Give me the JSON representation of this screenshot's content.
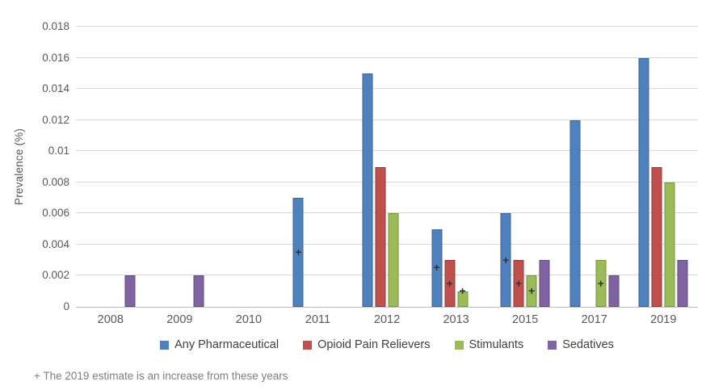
{
  "chart_data": {
    "type": "bar",
    "title": "",
    "xlabel": "",
    "ylabel": "Prevalence (%)",
    "ylim": [
      0,
      0.018
    ],
    "ytick_step": 0.002,
    "yticks": [
      "0",
      "0.002",
      "0.004",
      "0.006",
      "0.008",
      "0.01",
      "0.012",
      "0.014",
      "0.016",
      "0.018"
    ],
    "categories": [
      "2008",
      "2009",
      "2010",
      "2011",
      "2012",
      "2013",
      "2015",
      "2017",
      "2019"
    ],
    "series": [
      {
        "name": "Any Pharmaceutical",
        "color": "#4F81BD",
        "border_color": "#3C649A",
        "values": [
          0,
          0,
          0,
          0.007,
          0.015,
          0.005,
          0.006,
          0.012,
          0.016
        ]
      },
      {
        "name": "Opioid Pain Relievers",
        "color": "#C0504D",
        "border_color": "#953735",
        "values": [
          0,
          0,
          0,
          0,
          0.009,
          0.003,
          0.003,
          0,
          0.009
        ]
      },
      {
        "name": "Stimulants",
        "color": "#9BBB59",
        "border_color": "#77933C",
        "values": [
          0,
          0,
          0,
          0,
          0.006,
          0.001,
          0.002,
          0.003,
          0.008
        ]
      },
      {
        "name": "Sedatives",
        "color": "#8064A2",
        "border_color": "#604A7B",
        "values": [
          0.002,
          0.002,
          0,
          0,
          0,
          0,
          0.003,
          0.002,
          0.003
        ]
      }
    ],
    "marker_symbol": "+",
    "increase_markers": [
      {
        "category": "2011",
        "series": "Any Pharmaceutical",
        "value": 0.0035
      },
      {
        "category": "2013",
        "series": "Any Pharmaceutical",
        "value": 0.0025
      },
      {
        "category": "2013",
        "series": "Opioid Pain Relievers",
        "value": 0.0015
      },
      {
        "category": "2013",
        "series": "Stimulants",
        "value": 0.001
      },
      {
        "category": "2015",
        "series": "Any Pharmaceutical",
        "value": 0.003
      },
      {
        "category": "2015",
        "series": "Opioid Pain Relievers",
        "value": 0.0015
      },
      {
        "category": "2015",
        "series": "Stimulants",
        "value": 0.001
      },
      {
        "category": "2017",
        "series": "Stimulants",
        "value": 0.0015
      }
    ],
    "grid": true,
    "legend_position": "bottom"
  },
  "footnote": "+ The 2019 estimate is an increase from these years",
  "style_colors": {
    "background": "#FFFFFF",
    "gridline": "#D9D9D9",
    "axis_line": "#BFBFBF",
    "tick_label": "#595959",
    "legend_label": "#404040",
    "marker": "#333333",
    "footnote": "#7F7F7F"
  }
}
